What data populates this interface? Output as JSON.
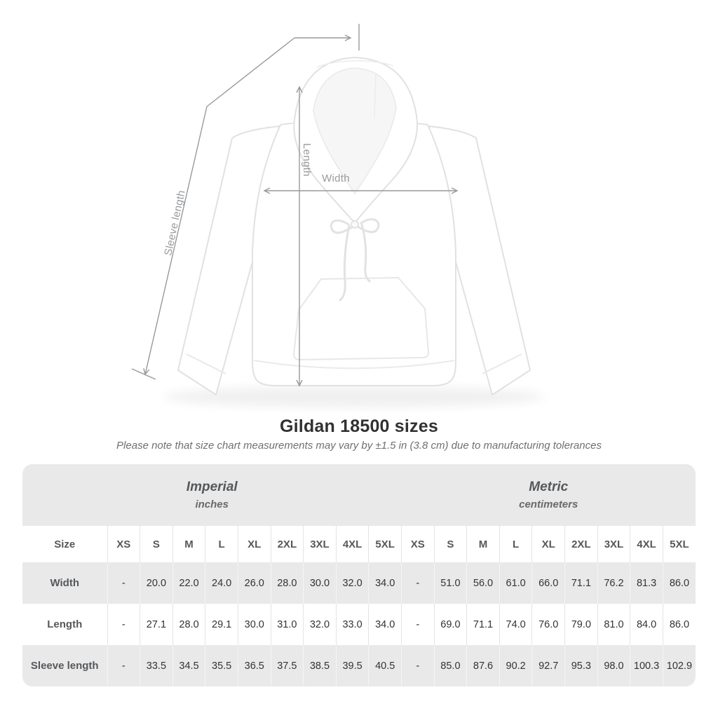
{
  "title": "Gildan 18500 sizes",
  "note": "Please note that size chart measurements may vary by ±1.5 in (3.8 cm) due to manufacturing tolerances",
  "diagram": {
    "labels": {
      "sleeve": "Sleeve length",
      "length": "Length",
      "width": "Width"
    }
  },
  "table": {
    "size_header": "Size",
    "groups": [
      {
        "label": "Imperial",
        "sublabel": "inches"
      },
      {
        "label": "Metric",
        "sublabel": "centimeters"
      }
    ],
    "sizes": [
      "XS",
      "S",
      "M",
      "L",
      "XL",
      "2XL",
      "3XL",
      "4XL",
      "5XL"
    ],
    "rows": [
      {
        "label": "Width",
        "imperial": [
          "-",
          "20.0",
          "22.0",
          "24.0",
          "26.0",
          "28.0",
          "30.0",
          "32.0",
          "34.0"
        ],
        "metric": [
          "-",
          "51.0",
          "56.0",
          "61.0",
          "66.0",
          "71.1",
          "76.2",
          "81.3",
          "86.0"
        ]
      },
      {
        "label": "Length",
        "imperial": [
          "-",
          "27.1",
          "28.0",
          "29.1",
          "30.0",
          "31.0",
          "32.0",
          "33.0",
          "34.0"
        ],
        "metric": [
          "-",
          "69.0",
          "71.1",
          "74.0",
          "76.0",
          "79.0",
          "81.0",
          "84.0",
          "86.0"
        ]
      },
      {
        "label": "Sleeve length",
        "imperial": [
          "-",
          "33.5",
          "34.5",
          "35.5",
          "36.5",
          "37.5",
          "38.5",
          "39.5",
          "40.5"
        ],
        "metric": [
          "-",
          "85.0",
          "87.6",
          "90.2",
          "92.7",
          "95.3",
          "98.0",
          "100.3",
          "102.9"
        ]
      }
    ]
  },
  "colors": {
    "stripe_gray": "#e9e9e9",
    "measure_line_gray": "#97999c",
    "value_text": "#333333",
    "header_text": "#55585b"
  }
}
